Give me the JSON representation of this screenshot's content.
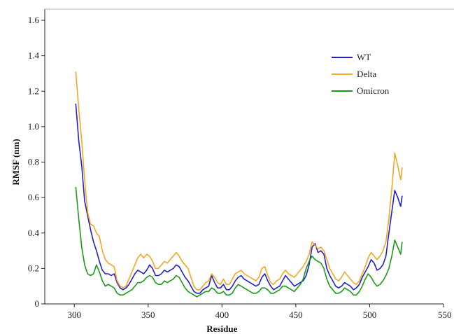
{
  "chart_data": {
    "type": "line",
    "title": "",
    "xlabel": "Residue",
    "ylabel": "RMSF (nm)",
    "xlim": [
      280,
      550
    ],
    "ylim": [
      0,
      1.6
    ],
    "x_ticks": [
      300,
      350,
      400,
      450,
      500,
      550
    ],
    "x_tick_labels": [
      "300",
      "350",
      "400",
      "450",
      "500",
      "550"
    ],
    "y_ticks": [
      0,
      0.2,
      0.4,
      0.6,
      0.8,
      1.0,
      1.2,
      1.4,
      1.6
    ],
    "y_tick_labels": [
      "0",
      "0.2",
      "0.4",
      "0.6",
      "0.8",
      "1.0",
      "1.2",
      "1.4",
      "1.6"
    ],
    "grid": false,
    "legend_position": "top-right",
    "x": [
      301,
      303,
      305,
      307,
      309,
      311,
      313,
      315,
      317,
      319,
      321,
      323,
      325,
      327,
      329,
      331,
      333,
      335,
      337,
      339,
      341,
      343,
      345,
      347,
      349,
      351,
      353,
      355,
      357,
      359,
      361,
      363,
      365,
      367,
      369,
      371,
      373,
      375,
      377,
      379,
      381,
      383,
      385,
      387,
      389,
      391,
      393,
      395,
      397,
      399,
      401,
      403,
      405,
      407,
      409,
      411,
      413,
      415,
      417,
      419,
      421,
      423,
      425,
      427,
      429,
      431,
      433,
      435,
      437,
      439,
      441,
      443,
      445,
      447,
      449,
      451,
      453,
      455,
      457,
      459,
      461,
      463,
      465,
      467,
      469,
      471,
      473,
      475,
      477,
      479,
      481,
      483,
      485,
      487,
      489,
      491,
      493,
      495,
      497,
      499,
      501,
      503,
      505,
      507,
      509,
      511,
      513,
      515,
      517,
      519,
      521,
      522
    ],
    "series": [
      {
        "name": "WT",
        "color": "#1f1fd6",
        "values": [
          1.13,
          0.92,
          0.78,
          0.58,
          0.5,
          0.42,
          0.35,
          0.3,
          0.24,
          0.19,
          0.17,
          0.17,
          0.16,
          0.17,
          0.12,
          0.09,
          0.08,
          0.09,
          0.11,
          0.14,
          0.17,
          0.19,
          0.18,
          0.17,
          0.19,
          0.22,
          0.2,
          0.16,
          0.16,
          0.17,
          0.19,
          0.18,
          0.19,
          0.2,
          0.22,
          0.21,
          0.18,
          0.15,
          0.13,
          0.1,
          0.07,
          0.06,
          0.06,
          0.08,
          0.09,
          0.1,
          0.16,
          0.12,
          0.09,
          0.09,
          0.11,
          0.08,
          0.08,
          0.1,
          0.13,
          0.15,
          0.16,
          0.14,
          0.13,
          0.12,
          0.11,
          0.1,
          0.11,
          0.15,
          0.17,
          0.13,
          0.1,
          0.08,
          0.09,
          0.1,
          0.13,
          0.16,
          0.14,
          0.12,
          0.1,
          0.11,
          0.12,
          0.13,
          0.16,
          0.22,
          0.32,
          0.34,
          0.29,
          0.3,
          0.28,
          0.2,
          0.16,
          0.13,
          0.1,
          0.09,
          0.1,
          0.12,
          0.11,
          0.1,
          0.08,
          0.09,
          0.11,
          0.15,
          0.18,
          0.21,
          0.25,
          0.23,
          0.19,
          0.2,
          0.22,
          0.27,
          0.4,
          0.52,
          0.64,
          0.6,
          0.55,
          0.61
        ]
      },
      {
        "name": "Delta",
        "color": "#f5a623",
        "values": [
          1.31,
          1.1,
          0.92,
          0.7,
          0.52,
          0.45,
          0.44,
          0.4,
          0.38,
          0.3,
          0.25,
          0.23,
          0.22,
          0.21,
          0.13,
          0.1,
          0.09,
          0.1,
          0.14,
          0.18,
          0.22,
          0.26,
          0.28,
          0.26,
          0.28,
          0.27,
          0.24,
          0.2,
          0.2,
          0.22,
          0.24,
          0.23,
          0.25,
          0.27,
          0.29,
          0.27,
          0.24,
          0.22,
          0.2,
          0.15,
          0.1,
          0.08,
          0.08,
          0.1,
          0.12,
          0.13,
          0.17,
          0.15,
          0.12,
          0.11,
          0.14,
          0.11,
          0.11,
          0.14,
          0.17,
          0.18,
          0.19,
          0.17,
          0.16,
          0.15,
          0.14,
          0.13,
          0.15,
          0.2,
          0.21,
          0.16,
          0.12,
          0.11,
          0.13,
          0.14,
          0.17,
          0.19,
          0.17,
          0.16,
          0.15,
          0.17,
          0.19,
          0.21,
          0.24,
          0.28,
          0.35,
          0.33,
          0.31,
          0.32,
          0.3,
          0.25,
          0.2,
          0.17,
          0.14,
          0.13,
          0.15,
          0.18,
          0.16,
          0.14,
          0.12,
          0.11,
          0.13,
          0.17,
          0.21,
          0.26,
          0.29,
          0.27,
          0.25,
          0.27,
          0.3,
          0.35,
          0.48,
          0.65,
          0.85,
          0.78,
          0.7,
          0.77
        ]
      },
      {
        "name": "Omicron",
        "color": "#1a9a1a",
        "values": [
          0.66,
          0.48,
          0.32,
          0.22,
          0.17,
          0.16,
          0.17,
          0.22,
          0.18,
          0.13,
          0.1,
          0.11,
          0.1,
          0.09,
          0.06,
          0.05,
          0.05,
          0.06,
          0.07,
          0.08,
          0.1,
          0.12,
          0.12,
          0.13,
          0.15,
          0.16,
          0.15,
          0.12,
          0.11,
          0.11,
          0.13,
          0.12,
          0.13,
          0.14,
          0.16,
          0.15,
          0.12,
          0.09,
          0.07,
          0.06,
          0.05,
          0.04,
          0.05,
          0.06,
          0.07,
          0.07,
          0.09,
          0.08,
          0.06,
          0.06,
          0.07,
          0.05,
          0.05,
          0.06,
          0.09,
          0.11,
          0.1,
          0.09,
          0.08,
          0.07,
          0.06,
          0.06,
          0.07,
          0.09,
          0.09,
          0.08,
          0.06,
          0.06,
          0.07,
          0.08,
          0.1,
          0.1,
          0.09,
          0.08,
          0.07,
          0.09,
          0.11,
          0.14,
          0.2,
          0.24,
          0.27,
          0.25,
          0.24,
          0.23,
          0.2,
          0.14,
          0.1,
          0.08,
          0.06,
          0.06,
          0.07,
          0.09,
          0.08,
          0.07,
          0.05,
          0.05,
          0.07,
          0.1,
          0.14,
          0.17,
          0.15,
          0.12,
          0.1,
          0.11,
          0.13,
          0.16,
          0.2,
          0.27,
          0.36,
          0.32,
          0.28,
          0.35
        ]
      }
    ]
  }
}
